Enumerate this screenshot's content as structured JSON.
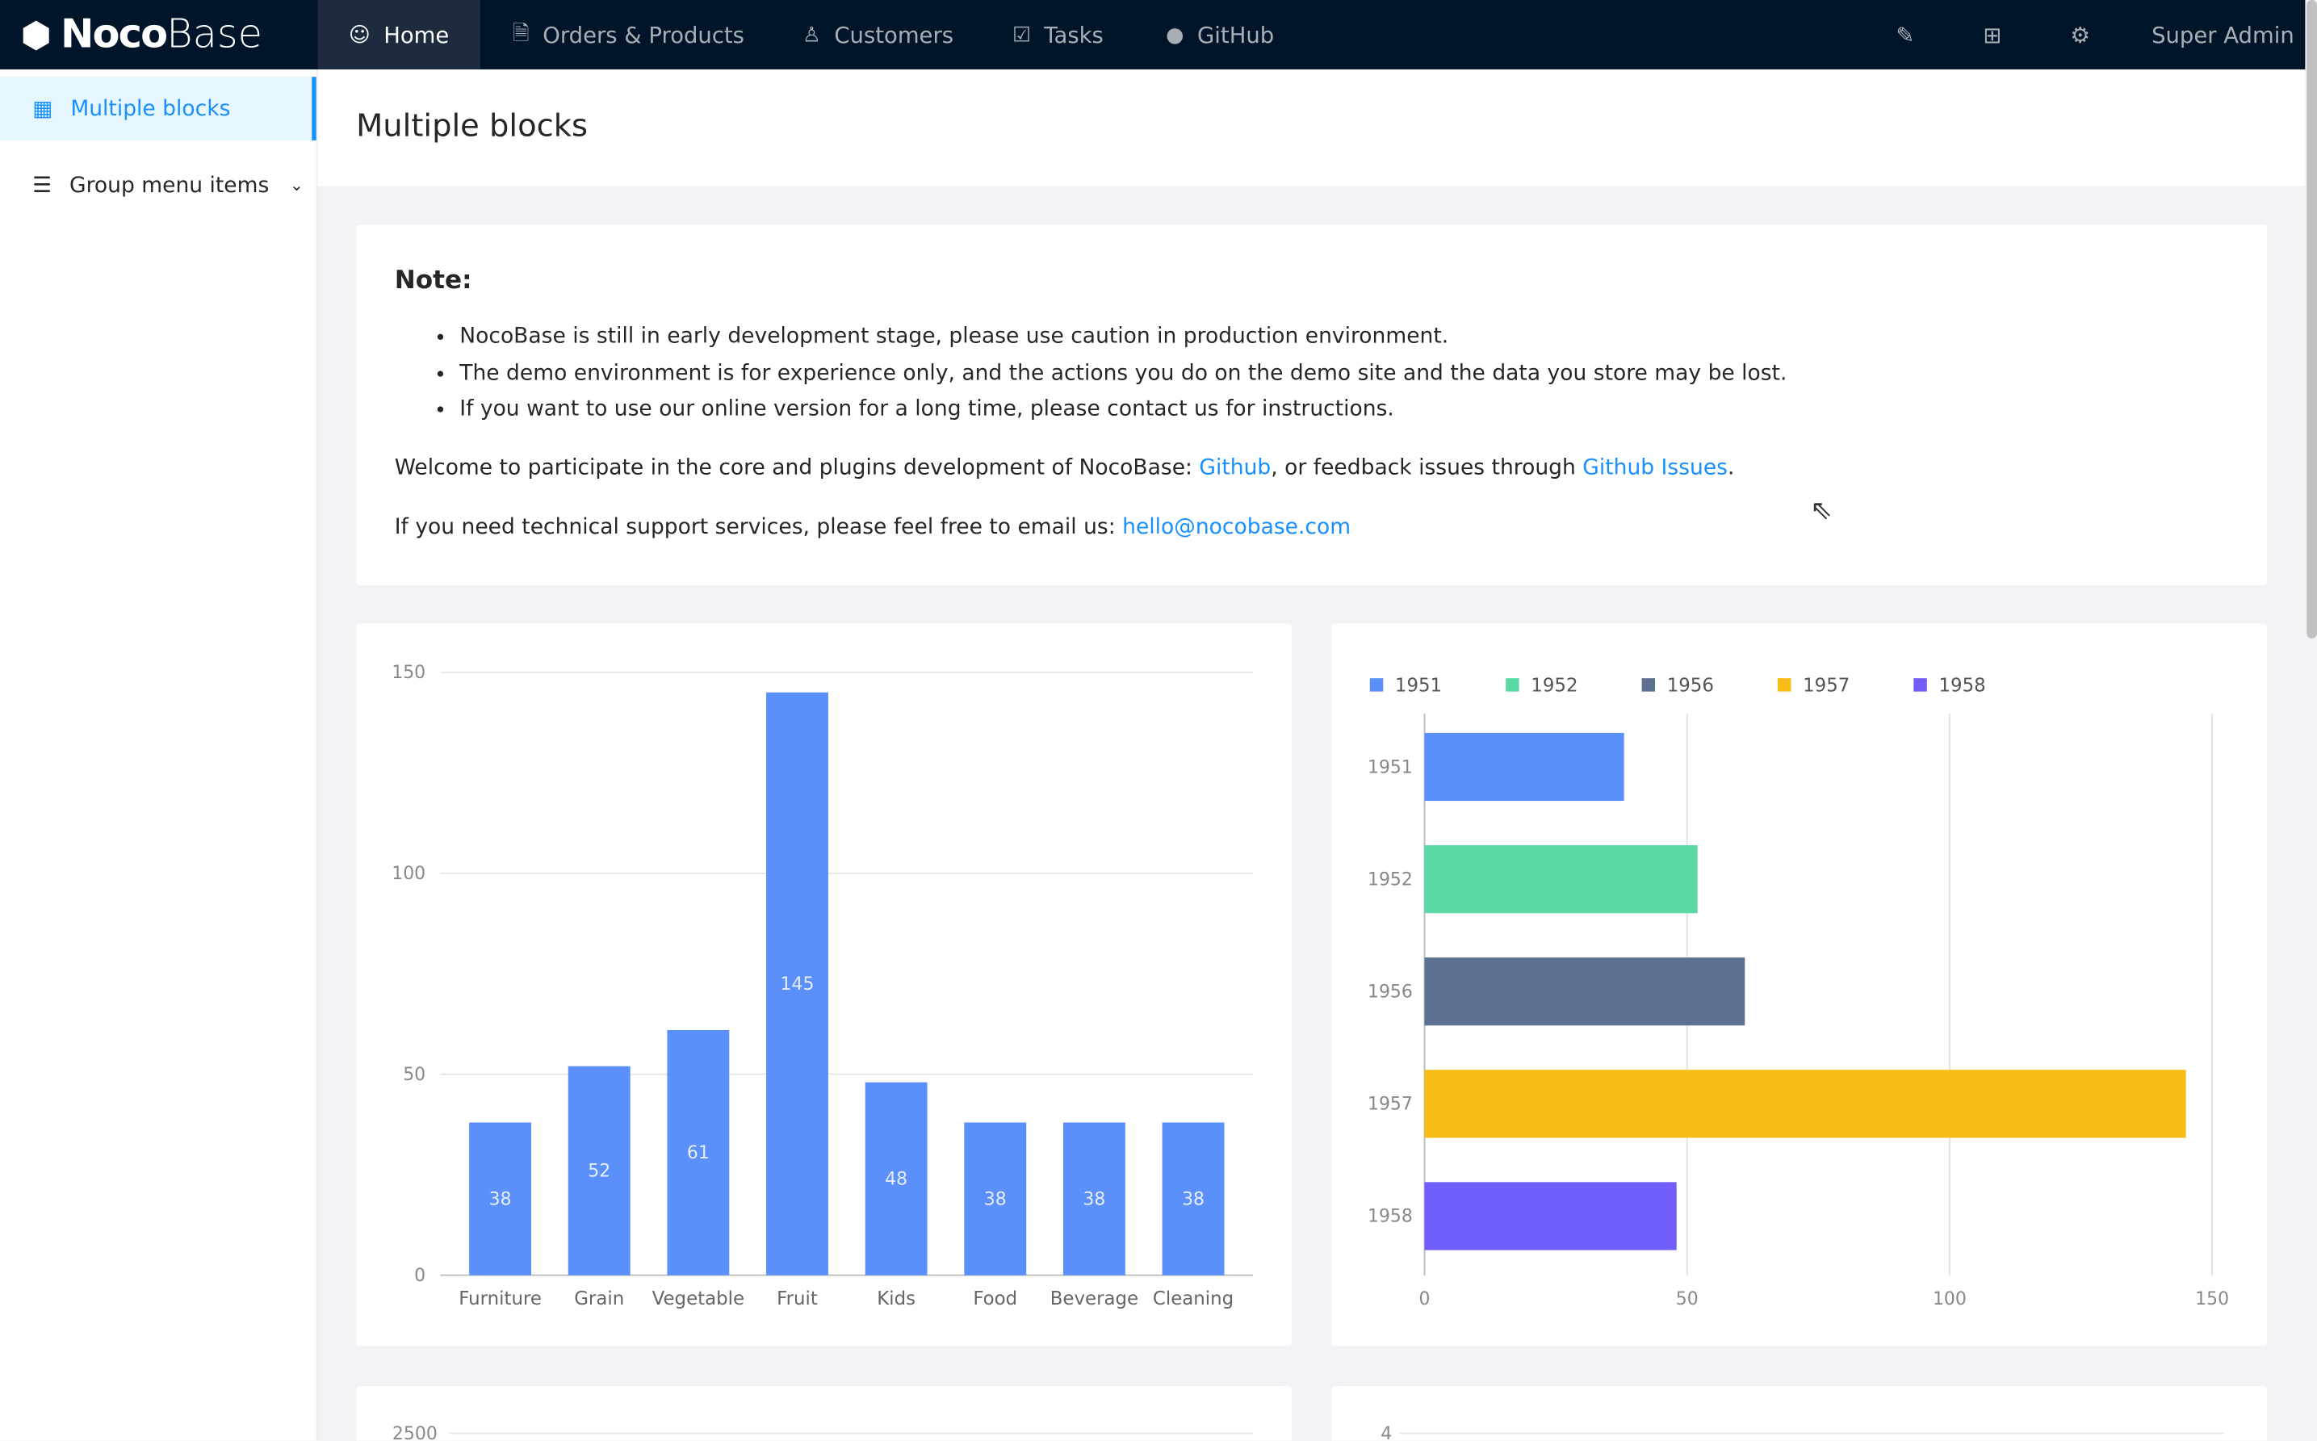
{
  "header": {
    "logo": {
      "bold": "Noco",
      "light": "Base"
    },
    "nav": [
      {
        "label": "Home",
        "icon": "smile-icon",
        "active": true
      },
      {
        "label": "Orders & Products",
        "icon": "file-check-icon"
      },
      {
        "label": "Customers",
        "icon": "user-icon"
      },
      {
        "label": "Tasks",
        "icon": "check-square-icon"
      },
      {
        "label": "GitHub",
        "icon": "github-icon"
      }
    ],
    "right_icons": [
      "highlight-icon",
      "plugin-grid-icon",
      "settings-icon"
    ],
    "user": "Super Admin"
  },
  "sidebar": {
    "items": [
      {
        "label": "Multiple blocks",
        "icon": "appstore-icon",
        "active": true
      },
      {
        "label": "Group menu items",
        "icon": "list-icon"
      }
    ]
  },
  "page": {
    "title": "Multiple blocks"
  },
  "note": {
    "heading": "Note:",
    "bullets": [
      "NocoBase is still in early development stage, please use caution in production environment.",
      "The demo environment is for experience only, and the actions you do on the demo site and the data you store may be lost.",
      "If you want to use our online version for a long time, please contact us for instructions."
    ],
    "welcome_prefix": "Welcome to participate in the core and plugins development of NocoBase: ",
    "github_link": "Github",
    "welcome_mid": ", or feedback issues through ",
    "issues_link": "Github Issues",
    "welcome_suffix": ".",
    "support_prefix": "If you need technical support services, please feel free to email us: ",
    "email": "hello@nocobase.com"
  },
  "chart_data": [
    {
      "type": "bar",
      "categories": [
        "Furniture",
        "Grain",
        "Vegetable",
        "Fruit",
        "Kids",
        "Food",
        "Beverage",
        "Cleaning"
      ],
      "values": [
        38,
        52,
        61,
        145,
        48,
        38,
        38,
        38
      ],
      "ylim": [
        0,
        150
      ],
      "yticks": [
        "0",
        "50",
        "100",
        "150"
      ],
      "color": "#5B8FF9",
      "grid": true
    },
    {
      "type": "bar-horizontal",
      "categories": [
        "1951",
        "1952",
        "1956",
        "1957",
        "1958"
      ],
      "values": [
        38,
        52,
        61,
        145,
        48
      ],
      "xlim": [
        0,
        150
      ],
      "xticks": [
        "0",
        "50",
        "100",
        "150"
      ],
      "colors": [
        "#5B8FF9",
        "#5AD8A6",
        "#5D7092",
        "#F6BD16",
        "#6F5EF9"
      ],
      "legend": {
        "position": "top-left",
        "entries": [
          "1951",
          "1952",
          "1956",
          "1957",
          "1958"
        ]
      },
      "grid": true
    },
    {
      "type": "unknown",
      "yticks_visible": [
        "2500"
      ]
    },
    {
      "type": "unknown",
      "yticks_visible": [
        "4"
      ]
    }
  ]
}
